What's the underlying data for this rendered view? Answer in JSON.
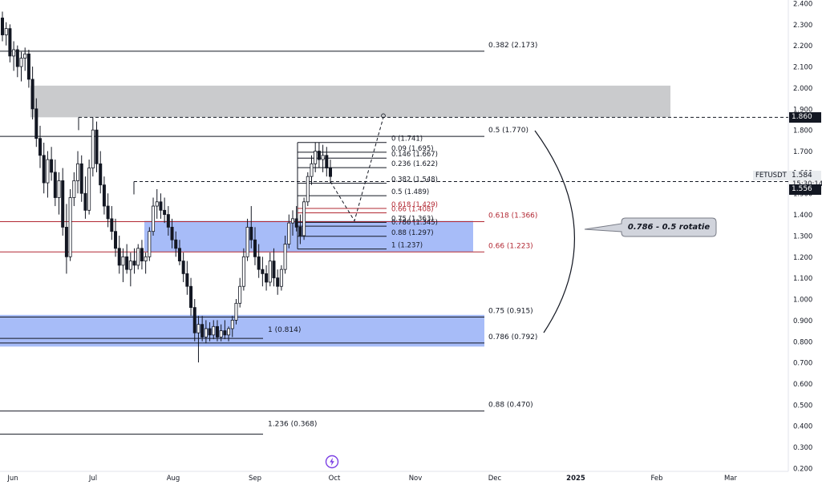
{
  "chart_data": {
    "type": "candlestick",
    "symbol": "FETUSDT",
    "price_axis": {
      "ticks": [
        "2.400",
        "2.300",
        "2.200",
        "2.100",
        "2.000",
        "1.900",
        "1.800",
        "1.700",
        "1.600",
        "1.500",
        "1.400",
        "1.300",
        "1.200",
        "1.100",
        "1.000",
        "0.900",
        "0.800",
        "0.700",
        "0.600",
        "0.500",
        "0.400",
        "0.300",
        "0.200"
      ]
    },
    "time_axis": {
      "ticks": [
        "Jun",
        "Jul",
        "Aug",
        "Sep",
        "Oct",
        "Nov",
        "Dec",
        "2025",
        "Feb",
        "Mar"
      ]
    },
    "price_tags": {
      "level_tag": "1.860",
      "current_price": "1.584",
      "countdown": "15:30:14",
      "cursor_price": "1.556"
    },
    "zones": [
      {
        "name": "resistance-zone",
        "from": 1.86,
        "to": 2.01,
        "color": "#c4c5c8"
      },
      {
        "name": "upper-demand-zone",
        "from": 1.222,
        "to": 1.37,
        "color": "#9db5f7"
      },
      {
        "name": "lower-demand-zone",
        "from": 0.775,
        "to": 0.925,
        "color": "#9db5f7"
      }
    ],
    "fib_main": [
      {
        "label": "0.382 (2.173)",
        "value": 2.173,
        "color": "#131722"
      },
      {
        "label": "0.5 (1.770)",
        "value": 1.77,
        "color": "#131722"
      },
      {
        "label": "0.618 (1.366)",
        "value": 1.366,
        "color": "#b22833"
      },
      {
        "label": "0.66 (1.223)",
        "value": 1.223,
        "color": "#b22833"
      },
      {
        "label": "0.75 (0.915)",
        "value": 0.915,
        "color": "#131722"
      },
      {
        "label": "0.786 (0.792)",
        "value": 0.792,
        "color": "#131722"
      },
      {
        "label": "0.88 (0.470)",
        "value": 0.47,
        "color": "#131722"
      }
    ],
    "fib_extra": [
      {
        "label": "1 (0.814)",
        "value": 0.814
      },
      {
        "label": "1.236 (0.368)",
        "value": 0.368
      }
    ],
    "fib_local": [
      {
        "label": "0 (1.741)",
        "value": 1.741,
        "color": "#131722"
      },
      {
        "label": "0.09 (1.695)",
        "value": 1.695,
        "color": "#131722"
      },
      {
        "label": "0.146 (1.667)",
        "value": 1.667,
        "color": "#131722"
      },
      {
        "label": "0.236 (1.622)",
        "value": 1.622,
        "color": "#131722"
      },
      {
        "label": "0.382 (1.548)",
        "value": 1.548,
        "color": "#131722"
      },
      {
        "label": "0.5 (1.489)",
        "value": 1.489,
        "color": "#131722"
      },
      {
        "label": "0.618 (1.429)",
        "value": 1.429,
        "color": "#b22833"
      },
      {
        "label": "0.66 (1.408)",
        "value": 1.408,
        "color": "#b22833"
      },
      {
        "label": "0.75 (1.363)",
        "value": 1.363,
        "color": "#131722"
      },
      {
        "label": "0.786 (1.345)",
        "value": 1.345,
        "color": "#131722"
      },
      {
        "label": "0.88 (1.297)",
        "value": 1.297,
        "color": "#131722"
      },
      {
        "label": "1 (1.237)",
        "value": 1.237,
        "color": "#131722"
      }
    ],
    "dashed_levels": [
      1.86,
      1.556
    ],
    "annotation": "0.786 - 0.5 rotatie",
    "candles": [
      [
        2.33,
        2.36,
        2.22,
        2.25
      ],
      [
        2.25,
        2.31,
        2.2,
        2.28
      ],
      [
        2.28,
        2.3,
        2.12,
        2.15
      ],
      [
        2.15,
        2.22,
        2.08,
        2.18
      ],
      [
        2.18,
        2.2,
        2.05,
        2.1
      ],
      [
        2.1,
        2.17,
        2.03,
        2.14
      ],
      [
        2.14,
        2.19,
        2.08,
        2.16
      ],
      [
        2.16,
        2.18,
        2.0,
        2.04
      ],
      [
        2.04,
        2.1,
        1.85,
        1.9
      ],
      [
        1.9,
        1.95,
        1.72,
        1.76
      ],
      [
        1.76,
        1.82,
        1.62,
        1.68
      ],
      [
        1.68,
        1.74,
        1.5,
        1.55
      ],
      [
        1.55,
        1.7,
        1.48,
        1.66
      ],
      [
        1.66,
        1.72,
        1.56,
        1.6
      ],
      [
        1.6,
        1.66,
        1.44,
        1.48
      ],
      [
        1.48,
        1.6,
        1.4,
        1.56
      ],
      [
        1.56,
        1.62,
        1.3,
        1.34
      ],
      [
        1.34,
        1.45,
        1.12,
        1.2
      ],
      [
        1.2,
        1.52,
        1.18,
        1.48
      ],
      [
        1.48,
        1.6,
        1.44,
        1.56
      ],
      [
        1.56,
        1.7,
        1.5,
        1.64
      ],
      [
        1.64,
        1.68,
        1.46,
        1.5
      ],
      [
        1.5,
        1.58,
        1.38,
        1.42
      ],
      [
        1.42,
        1.66,
        1.4,
        1.62
      ],
      [
        1.62,
        1.86,
        1.58,
        1.8
      ],
      [
        1.8,
        1.84,
        1.6,
        1.64
      ],
      [
        1.64,
        1.7,
        1.5,
        1.54
      ],
      [
        1.54,
        1.58,
        1.4,
        1.44
      ],
      [
        1.44,
        1.5,
        1.34,
        1.38
      ],
      [
        1.38,
        1.44,
        1.28,
        1.32
      ],
      [
        1.32,
        1.38,
        1.2,
        1.24
      ],
      [
        1.24,
        1.3,
        1.12,
        1.16
      ],
      [
        1.16,
        1.24,
        1.08,
        1.2
      ],
      [
        1.2,
        1.26,
        1.12,
        1.14
      ],
      [
        1.14,
        1.22,
        1.06,
        1.18
      ],
      [
        1.18,
        1.24,
        1.12,
        1.16
      ],
      [
        1.16,
        1.26,
        1.14,
        1.24
      ],
      [
        1.24,
        1.28,
        1.14,
        1.18
      ],
      [
        1.18,
        1.22,
        1.12,
        1.2
      ],
      [
        1.2,
        1.34,
        1.18,
        1.32
      ],
      [
        1.32,
        1.48,
        1.3,
        1.44
      ],
      [
        1.44,
        1.52,
        1.38,
        1.46
      ],
      [
        1.46,
        1.5,
        1.38,
        1.42
      ],
      [
        1.42,
        1.48,
        1.36,
        1.4
      ],
      [
        1.4,
        1.44,
        1.3,
        1.34
      ],
      [
        1.34,
        1.38,
        1.24,
        1.28
      ],
      [
        1.28,
        1.32,
        1.2,
        1.24
      ],
      [
        1.24,
        1.28,
        1.16,
        1.18
      ],
      [
        1.18,
        1.22,
        1.08,
        1.12
      ],
      [
        1.12,
        1.18,
        1.02,
        1.06
      ],
      [
        1.06,
        1.1,
        0.92,
        0.96
      ],
      [
        0.96,
        1.0,
        0.8,
        0.84
      ],
      [
        0.84,
        0.92,
        0.7,
        0.88
      ],
      [
        0.88,
        0.92,
        0.8,
        0.82
      ],
      [
        0.82,
        0.9,
        0.79,
        0.86
      ],
      [
        0.86,
        0.89,
        0.8,
        0.83
      ],
      [
        0.83,
        0.9,
        0.81,
        0.87
      ],
      [
        0.87,
        0.9,
        0.8,
        0.82
      ],
      [
        0.82,
        0.88,
        0.8,
        0.85
      ],
      [
        0.85,
        0.9,
        0.81,
        0.83
      ],
      [
        0.83,
        0.87,
        0.8,
        0.86
      ],
      [
        0.86,
        0.92,
        0.82,
        0.9
      ],
      [
        0.9,
        1.0,
        0.88,
        0.98
      ],
      [
        0.98,
        1.1,
        0.96,
        1.06
      ],
      [
        1.06,
        1.24,
        1.04,
        1.2
      ],
      [
        1.2,
        1.38,
        1.18,
        1.34
      ],
      [
        1.34,
        1.44,
        1.24,
        1.28
      ],
      [
        1.28,
        1.34,
        1.16,
        1.2
      ],
      [
        1.2,
        1.26,
        1.1,
        1.14
      ],
      [
        1.14,
        1.2,
        1.06,
        1.12
      ],
      [
        1.12,
        1.16,
        1.04,
        1.08
      ],
      [
        1.08,
        1.22,
        1.06,
        1.18
      ],
      [
        1.18,
        1.24,
        1.06,
        1.1
      ],
      [
        1.1,
        1.14,
        1.02,
        1.06
      ],
      [
        1.06,
        1.16,
        1.04,
        1.14
      ],
      [
        1.14,
        1.3,
        1.12,
        1.26
      ],
      [
        1.26,
        1.4,
        1.24,
        1.36
      ],
      [
        1.36,
        1.42,
        1.3,
        1.38
      ],
      [
        1.38,
        1.44,
        1.32,
        1.34
      ],
      [
        1.34,
        1.4,
        1.26,
        1.3
      ],
      [
        1.3,
        1.48,
        1.28,
        1.46
      ],
      [
        1.46,
        1.6,
        1.44,
        1.58
      ],
      [
        1.58,
        1.68,
        1.54,
        1.64
      ],
      [
        1.64,
        1.74,
        1.6,
        1.7
      ],
      [
        1.7,
        1.74,
        1.62,
        1.66
      ],
      [
        1.66,
        1.73,
        1.6,
        1.68
      ],
      [
        1.68,
        1.72,
        1.58,
        1.62
      ],
      [
        1.62,
        1.66,
        1.55,
        1.58
      ]
    ]
  }
}
